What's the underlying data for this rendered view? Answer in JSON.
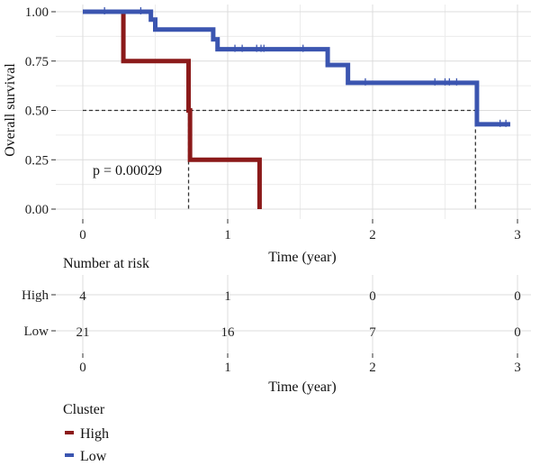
{
  "chart_data": [
    {
      "type": "line",
      "subtype": "kaplan-meier step",
      "xlabel": "Time (year)",
      "ylabel": "Overall survival",
      "x_ticks": [
        "0",
        "1",
        "2",
        "3"
      ],
      "y_ticks": [
        "0.00",
        "0.25",
        "0.50",
        "0.75",
        "1.00"
      ],
      "xlim": [
        0,
        3.05
      ],
      "ylim": [
        0,
        1
      ],
      "grid": true,
      "annotation": "p = 0.00029",
      "median_reference": {
        "survival": 0.5,
        "median_times": [
          0.73,
          2.71
        ]
      },
      "series": [
        {
          "name": "High",
          "color": "#8b1a1a",
          "steps": [
            [
              0,
              1.0
            ],
            [
              0.28,
              0.75
            ],
            [
              0.73,
              0.5
            ],
            [
              0.74,
              0.25
            ],
            [
              1.22,
              0.0
            ]
          ],
          "end_x": 1.22,
          "censor_times": []
        },
        {
          "name": "Low",
          "color": "#3b55b0",
          "steps": [
            [
              0,
              1.0
            ],
            [
              0.47,
              0.96
            ],
            [
              0.5,
              0.91
            ],
            [
              0.9,
              0.86
            ],
            [
              0.93,
              0.81
            ],
            [
              1.69,
              0.73
            ],
            [
              1.83,
              0.64
            ],
            [
              2.72,
              0.43
            ]
          ],
          "end_x": 2.95,
          "censor_times": [
            0.15,
            0.4,
            1.05,
            1.1,
            1.2,
            1.23,
            1.25,
            1.52,
            1.95,
            2.43,
            2.5,
            2.53,
            2.58,
            2.88,
            2.92
          ]
        }
      ]
    },
    {
      "type": "table",
      "title": "Number at risk",
      "xlabel": "Time (year)",
      "x_ticks": [
        "0",
        "1",
        "2",
        "3"
      ],
      "rows": [
        {
          "name": "High",
          "values": [
            "4",
            "1",
            "0",
            "0"
          ]
        },
        {
          "name": "Low",
          "values": [
            "21",
            "16",
            "7",
            "0"
          ]
        }
      ]
    }
  ],
  "legend": {
    "title": "Cluster",
    "items": [
      {
        "label": "High",
        "color": "#8b1a1a"
      },
      {
        "label": "Low",
        "color": "#3b55b0"
      }
    ]
  }
}
